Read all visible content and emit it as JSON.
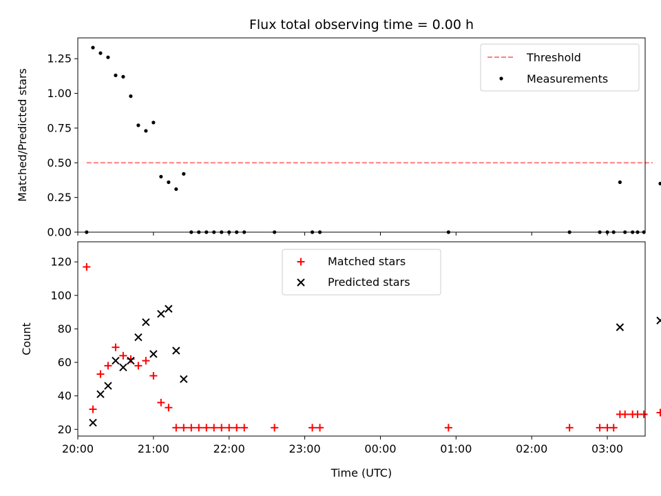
{
  "chart_data": [
    {
      "type": "scatter",
      "title": "Flux total observing time = 0.00 h",
      "xlabel": "",
      "ylabel": "Matched/Predicted stars",
      "ylim": [
        0,
        1.4
      ],
      "xlim": [
        "20:00",
        "03:30"
      ],
      "yticks": [
        "0.00",
        "0.25",
        "0.50",
        "0.75",
        "1.00",
        "1.25"
      ],
      "legend_placement": "top-right",
      "threshold": {
        "name": "Threshold",
        "value": 0.5,
        "x_range": [
          "20:07",
          "03:36"
        ],
        "color": "#ff7f7f"
      },
      "series": [
        {
          "name": "Measurements",
          "color": "#000000",
          "points": [
            [
              "20:07",
              0.0
            ],
            [
              "20:12",
              1.33
            ],
            [
              "20:18",
              1.29
            ],
            [
              "20:24",
              1.26
            ],
            [
              "20:30",
              1.13
            ],
            [
              "20:36",
              1.12
            ],
            [
              "20:42",
              0.98
            ],
            [
              "20:48",
              0.77
            ],
            [
              "20:54",
              0.73
            ],
            [
              "21:00",
              0.79
            ],
            [
              "21:06",
              0.4
            ],
            [
              "21:12",
              0.36
            ],
            [
              "21:18",
              0.31
            ],
            [
              "21:24",
              0.42
            ],
            [
              "21:30",
              0.0
            ],
            [
              "21:36",
              0.0
            ],
            [
              "21:42",
              0.0
            ],
            [
              "21:48",
              0.0
            ],
            [
              "21:54",
              0.0
            ],
            [
              "22:00",
              0.0
            ],
            [
              "22:06",
              0.0
            ],
            [
              "22:12",
              0.0
            ],
            [
              "22:36",
              0.0
            ],
            [
              "23:06",
              0.0
            ],
            [
              "23:12",
              0.0
            ],
            [
              "00:54",
              0.0
            ],
            [
              "02:30",
              0.0
            ],
            [
              "02:54",
              0.0
            ],
            [
              "03:00",
              0.0
            ],
            [
              "03:05",
              0.0
            ],
            [
              "03:10",
              0.36
            ],
            [
              "03:14",
              0.0
            ],
            [
              "03:20",
              0.0
            ],
            [
              "03:24",
              0.0
            ],
            [
              "03:29",
              0.0
            ],
            [
              "03:42",
              0.35
            ],
            [
              "03:48",
              0.72
            ],
            [
              "03:54",
              0.64
            ],
            [
              "04:00",
              0.51
            ],
            [
              "04:06",
              0.47
            ],
            [
              "04:12",
              0.83
            ],
            [
              "04:18",
              0.59
            ],
            [
              "04:24",
              0.47
            ],
            [
              "04:30",
              0.4
            ],
            [
              "04:36",
              0.33
            ],
            [
              "04:42",
              0.39
            ],
            [
              "04:48",
              0.48
            ],
            [
              "04:54",
              0.48
            ],
            [
              "05:00",
              0.36
            ],
            [
              "05:06",
              0.0
            ],
            [
              "05:12",
              0.0
            ],
            [
              "05:18",
              0.0
            ],
            [
              "05:24",
              0.0
            ],
            [
              "05:30",
              0.0
            ],
            [
              "05:36",
              0.0
            ],
            [
              "05:42",
              0.0
            ],
            [
              "05:48",
              0.0
            ],
            [
              "05:54",
              0.0
            ],
            [
              "06:00",
              0.0
            ],
            [
              "06:06",
              0.0
            ]
          ]
        }
      ]
    },
    {
      "type": "scatter",
      "title": "",
      "xlabel": "Time (UTC)",
      "ylabel": "Count",
      "ylim": [
        16,
        132
      ],
      "xlim": [
        "20:00",
        "03:30"
      ],
      "xticks": [
        "20:00",
        "21:00",
        "22:00",
        "23:00",
        "00:00",
        "01:00",
        "02:00",
        "03:00"
      ],
      "yticks": [
        "20",
        "40",
        "60",
        "80",
        "100",
        "120"
      ],
      "legend_placement": "upper center",
      "series": [
        {
          "name": "Matched stars",
          "marker": "+",
          "color": "#ff0000",
          "points": [
            [
              "20:07",
              117
            ],
            [
              "20:12",
              32
            ],
            [
              "20:18",
              53
            ],
            [
              "20:24",
              58
            ],
            [
              "20:30",
              69
            ],
            [
              "20:36",
              64
            ],
            [
              "20:42",
              62
            ],
            [
              "20:48",
              58
            ],
            [
              "20:54",
              61
            ],
            [
              "21:00",
              52
            ],
            [
              "21:06",
              36
            ],
            [
              "21:12",
              33
            ],
            [
              "21:18",
              21
            ],
            [
              "21:24",
              21
            ],
            [
              "21:30",
              21
            ],
            [
              "21:36",
              21
            ],
            [
              "21:42",
              21
            ],
            [
              "21:48",
              21
            ],
            [
              "21:54",
              21
            ],
            [
              "22:00",
              21
            ],
            [
              "22:06",
              21
            ],
            [
              "22:12",
              21
            ],
            [
              "22:36",
              21
            ],
            [
              "23:06",
              21
            ],
            [
              "23:12",
              21
            ],
            [
              "00:54",
              21
            ],
            [
              "02:30",
              21
            ],
            [
              "02:54",
              21
            ],
            [
              "03:00",
              21
            ],
            [
              "03:05",
              21
            ],
            [
              "03:10",
              29
            ],
            [
              "03:14",
              29
            ],
            [
              "03:20",
              29
            ],
            [
              "03:24",
              29
            ],
            [
              "03:29",
              29
            ],
            [
              "03:42",
              30
            ],
            [
              "03:48",
              41
            ],
            [
              "03:54",
              42
            ],
            [
              "04:00",
              42
            ],
            [
              "04:06",
              50
            ],
            [
              "04:12",
              85
            ],
            [
              "04:18",
              63
            ],
            [
              "04:24",
              46
            ],
            [
              "04:30",
              50
            ],
            [
              "04:36",
              37
            ],
            [
              "04:42",
              26
            ],
            [
              "04:48",
              25
            ],
            [
              "04:54",
              60
            ],
            [
              "05:00",
              35
            ],
            [
              "05:06",
              35
            ],
            [
              "05:12",
              35
            ],
            [
              "05:18",
              35
            ],
            [
              "05:24",
              35
            ],
            [
              "05:30",
              35
            ],
            [
              "05:36",
              35
            ],
            [
              "05:42",
              35
            ],
            [
              "05:48",
              35
            ],
            [
              "05:54",
              35
            ],
            [
              "06:00",
              35
            ],
            [
              "06:06",
              35
            ]
          ]
        },
        {
          "name": "Predicted stars",
          "marker": "x",
          "color": "#000000",
          "points": [
            [
              "20:12",
              24
            ],
            [
              "20:18",
              41
            ],
            [
              "20:24",
              46
            ],
            [
              "20:30",
              61
            ],
            [
              "20:36",
              57
            ],
            [
              "20:42",
              61
            ],
            [
              "20:48",
              75
            ],
            [
              "20:54",
              84
            ],
            [
              "21:00",
              65
            ],
            [
              "21:06",
              89
            ],
            [
              "21:12",
              92
            ],
            [
              "21:18",
              67
            ],
            [
              "21:24",
              50
            ],
            [
              "03:10",
              81
            ],
            [
              "03:42",
              85
            ],
            [
              "03:48",
              57
            ],
            [
              "03:54",
              66
            ],
            [
              "04:00",
              99
            ],
            [
              "04:06",
              107
            ],
            [
              "04:12",
              103
            ],
            [
              "04:18",
              107
            ],
            [
              "04:24",
              97
            ],
            [
              "04:30",
              125
            ],
            [
              "04:36",
              111
            ],
            [
              "04:42",
              67
            ],
            [
              "04:48",
              52
            ],
            [
              "04:54",
              127
            ],
            [
              "05:00",
              97
            ]
          ]
        }
      ]
    }
  ]
}
